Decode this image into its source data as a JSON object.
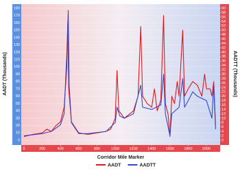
{
  "chart_data": {
    "type": "line",
    "x_label": "Corridor Mile Marker",
    "y_label": "AADT (Thousands)",
    "y2_label": "AADTT (Thousands)",
    "xlim": [
      -30,
      2150
    ],
    "xticks": [
      0,
      200,
      400,
      600,
      800,
      1000,
      1200,
      1400,
      1600,
      1800,
      2000
    ],
    "ylim": [
      0,
      180
    ],
    "yticks": [
      0,
      10,
      20,
      30,
      40,
      50,
      60,
      70,
      80,
      90,
      100,
      110,
      120,
      130,
      140,
      150,
      160,
      170,
      180
    ],
    "y2lim": [
      0,
      60
    ],
    "y2ticks": [
      0,
      2,
      4,
      6,
      8,
      10,
      12,
      14,
      16,
      18,
      20,
      22,
      24,
      26,
      28,
      30,
      32,
      34,
      36,
      38,
      40,
      42,
      44,
      46,
      48,
      50,
      52,
      54,
      56,
      58,
      60
    ],
    "series": [
      {
        "name": "AADT",
        "color": "#e0161b",
        "axis": "y",
        "x": [
          0,
          100,
          200,
          250,
          300,
          350,
          400,
          440,
          470,
          480,
          490,
          520,
          600,
          700,
          800,
          900,
          950,
          1000,
          1020,
          1040,
          1100,
          1150,
          1200,
          1250,
          1280,
          1300,
          1350,
          1400,
          1430,
          1460,
          1500,
          1530,
          1550,
          1580,
          1600,
          1620,
          1650,
          1680,
          1700,
          1740,
          1760,
          1800,
          1850,
          1900,
          1950,
          1980,
          2000,
          2040,
          2060,
          2080,
          2100
        ],
        "values": [
          5,
          8,
          10,
          15,
          12,
          20,
          25,
          45,
          100,
          160,
          70,
          25,
          10,
          8,
          10,
          12,
          15,
          30,
          95,
          40,
          30,
          35,
          40,
          60,
          155,
          60,
          50,
          45,
          70,
          40,
          55,
          170,
          50,
          35,
          5,
          60,
          50,
          80,
          60,
          150,
          60,
          70,
          80,
          75,
          60,
          90,
          70,
          70,
          60,
          80,
          20
        ]
      },
      {
        "name": "AADTT",
        "color": "#3346c8",
        "axis": "y2",
        "x": [
          0,
          100,
          200,
          300,
          400,
          440,
          470,
          485,
          495,
          520,
          600,
          700,
          800,
          900,
          1000,
          1020,
          1050,
          1100,
          1200,
          1280,
          1300,
          1400,
          1500,
          1530,
          1550,
          1600,
          1620,
          1700,
          1740,
          1760,
          1800,
          1850,
          1900,
          2000,
          2060,
          2080,
          2100
        ],
        "values": [
          2,
          2.5,
          3,
          4,
          7,
          12,
          40,
          59,
          25,
          8,
          3,
          3,
          3.5,
          4,
          8,
          15,
          11,
          10,
          12,
          25,
          15,
          14,
          16,
          30,
          12,
          2,
          12,
          15,
          28,
          15,
          18,
          22,
          20,
          18,
          10,
          25,
          5
        ]
      }
    ]
  }
}
